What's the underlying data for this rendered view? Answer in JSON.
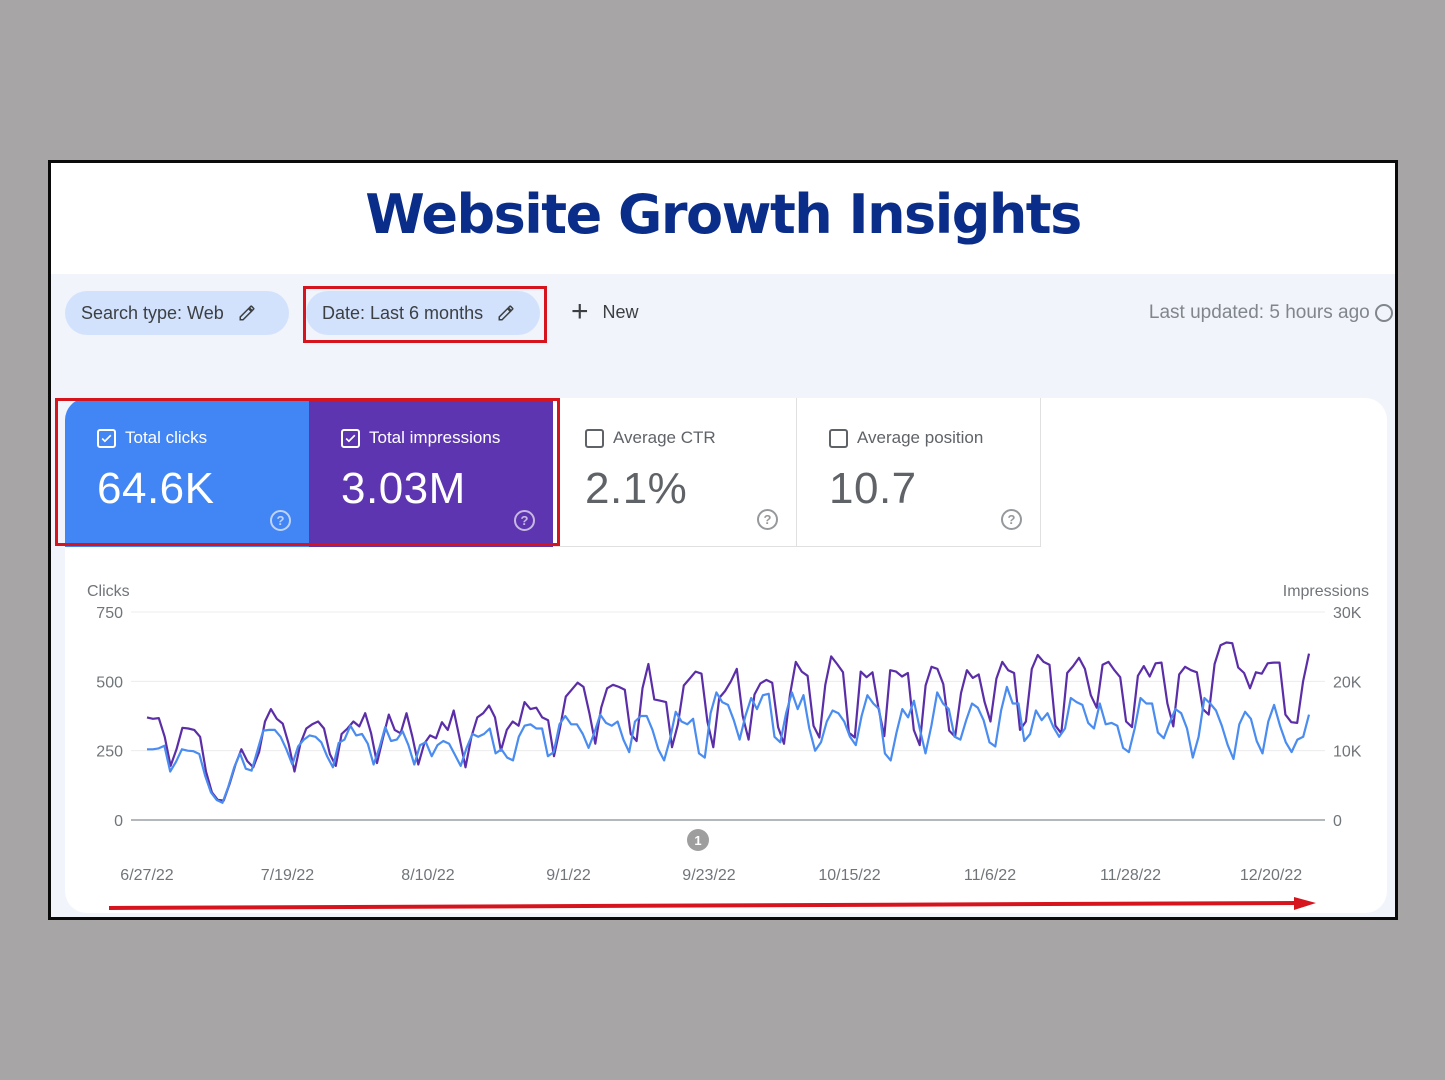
{
  "page": {
    "title": "Website Growth Insights",
    "title_color": "#0b2d8a"
  },
  "filters": {
    "search_type": "Search type: Web",
    "date": "Date: Last 6 months",
    "new_label": "New",
    "last_updated": "Last updated: 5 hours ago"
  },
  "metrics": [
    {
      "label": "Total clicks",
      "value": "64.6K",
      "checked": true,
      "color": "#4285f4"
    },
    {
      "label": "Total impressions",
      "value": "3.03M",
      "checked": true,
      "color": "#5e35b1"
    },
    {
      "label": "Average CTR",
      "value": "2.1%",
      "checked": false
    },
    {
      "label": "Average position",
      "value": "10.7",
      "checked": false
    }
  ],
  "annotation_marker": "1",
  "chart_data": {
    "type": "line",
    "title": "",
    "xlabel": "",
    "ylabel": "Clicks",
    "y2label": "Impressions",
    "ylim": [
      0,
      750
    ],
    "y2lim": [
      0,
      30000
    ],
    "yticks": [
      "0",
      "250",
      "500",
      "750"
    ],
    "y2ticks": [
      "0",
      "10K",
      "20K",
      "30K"
    ],
    "x_tick_labels": [
      "6/27/22",
      "7/19/22",
      "8/10/22",
      "9/1/22",
      "9/23/22",
      "10/15/22",
      "11/6/22",
      "11/28/22",
      "12/20/22"
    ],
    "grid": true,
    "legend": "none (metric cards act as legend)",
    "series": [
      {
        "name": "Clicks",
        "axis": "left",
        "color": "#4a8cf0",
        "values": [
          255,
          255,
          258,
          268,
          175,
          210,
          255,
          250,
          248,
          238,
          160,
          100,
          72,
          62,
          120,
          190,
          240,
          185,
          178,
          250,
          322,
          325,
          325,
          300,
          255,
          200,
          265,
          290,
          305,
          300,
          280,
          230,
          190,
          278,
          290,
          340,
          305,
          310,
          275,
          200,
          260,
          335,
          285,
          290,
          320,
          270,
          200,
          270,
          280,
          230,
          270,
          285,
          275,
          235,
          195,
          260,
          310,
          300,
          310,
          330,
          240,
          255,
          225,
          215,
          300,
          340,
          345,
          330,
          330,
          230,
          245,
          345,
          375,
          345,
          345,
          310,
          260,
          315,
          380,
          350,
          340,
          355,
          290,
          245,
          355,
          375,
          375,
          325,
          255,
          215,
          290,
          390,
          355,
          345,
          365,
          240,
          225,
          385,
          460,
          425,
          415,
          360,
          290,
          375,
          440,
          400,
          450,
          455,
          300,
          280,
          385,
          460,
          400,
          450,
          330,
          250,
          280,
          355,
          395,
          385,
          355,
          300,
          270,
          375,
          450,
          420,
          400,
          240,
          215,
          315,
          400,
          370,
          430,
          330,
          240,
          340,
          460,
          420,
          400,
          300,
          290,
          360,
          420,
          405,
          360,
          280,
          265,
          395,
          480,
          420,
          420,
          285,
          310,
          395,
          360,
          385,
          335,
          300,
          330,
          440,
          425,
          415,
          350,
          330,
          420,
          345,
          350,
          340,
          260,
          245,
          330,
          440,
          420,
          420,
          315,
          295,
          350,
          400,
          385,
          330,
          225,
          300,
          440,
          420,
          395,
          340,
          270,
          220,
          345,
          390,
          365,
          285,
          240,
          355,
          415,
          340,
          280,
          245,
          290,
          300,
          380
        ]
      },
      {
        "name": "Impressions",
        "axis": "right",
        "color": "#5b2ea8",
        "values": [
          14800,
          14600,
          14700,
          12000,
          7800,
          10200,
          13300,
          13200,
          13000,
          12000,
          7000,
          4000,
          2900,
          2800,
          5200,
          8000,
          10200,
          8500,
          7600,
          9800,
          14200,
          16000,
          14600,
          13900,
          11000,
          7000,
          11000,
          13200,
          13800,
          14200,
          13200,
          9500,
          7800,
          12400,
          13200,
          14200,
          13500,
          15400,
          12500,
          8200,
          11800,
          15200,
          13000,
          12500,
          15400,
          12000,
          8000,
          11000,
          12200,
          11800,
          14100,
          13000,
          15800,
          11800,
          7600,
          12000,
          14800,
          15400,
          16500,
          14800,
          10000,
          13000,
          14200,
          13600,
          17000,
          16000,
          16200,
          14800,
          14400,
          9200,
          13200,
          17800,
          18800,
          19800,
          19200,
          15400,
          11000,
          16200,
          19000,
          19500,
          19200,
          18800,
          12400,
          11400,
          19000,
          22500,
          17400,
          17200,
          17000,
          10500,
          13800,
          19400,
          20400,
          21400,
          21100,
          14200,
          10500,
          17600,
          18600,
          20000,
          21800,
          15000,
          11600,
          18100,
          19700,
          20200,
          19800,
          13400,
          11000,
          18000,
          22800,
          21400,
          20800,
          13600,
          11900,
          19500,
          23600,
          22500,
          21300,
          12600,
          11900,
          21400,
          20600,
          21300,
          16200,
          12100,
          21600,
          21400,
          20700,
          21200,
          13000,
          10800,
          19400,
          22100,
          21800,
          19600,
          12900,
          12000,
          18300,
          21600,
          20500,
          21000,
          17000,
          14200,
          20400,
          22800,
          21600,
          21200,
          13000,
          14200,
          21800,
          23800,
          22800,
          22400,
          13600,
          12500,
          21200,
          22200,
          23400,
          21800,
          18000,
          16200,
          22400,
          22800,
          21600,
          20600,
          14200,
          13400,
          20800,
          22200,
          20700,
          22600,
          22700,
          16800,
          13500,
          21000,
          22100,
          21600,
          21300,
          16000,
          15200,
          22500,
          25200,
          25600,
          25500,
          22000,
          21200,
          19000,
          21300,
          21100,
          22600,
          22700,
          22700,
          15200,
          14100,
          14000,
          20000,
          24000
        ]
      }
    ]
  }
}
